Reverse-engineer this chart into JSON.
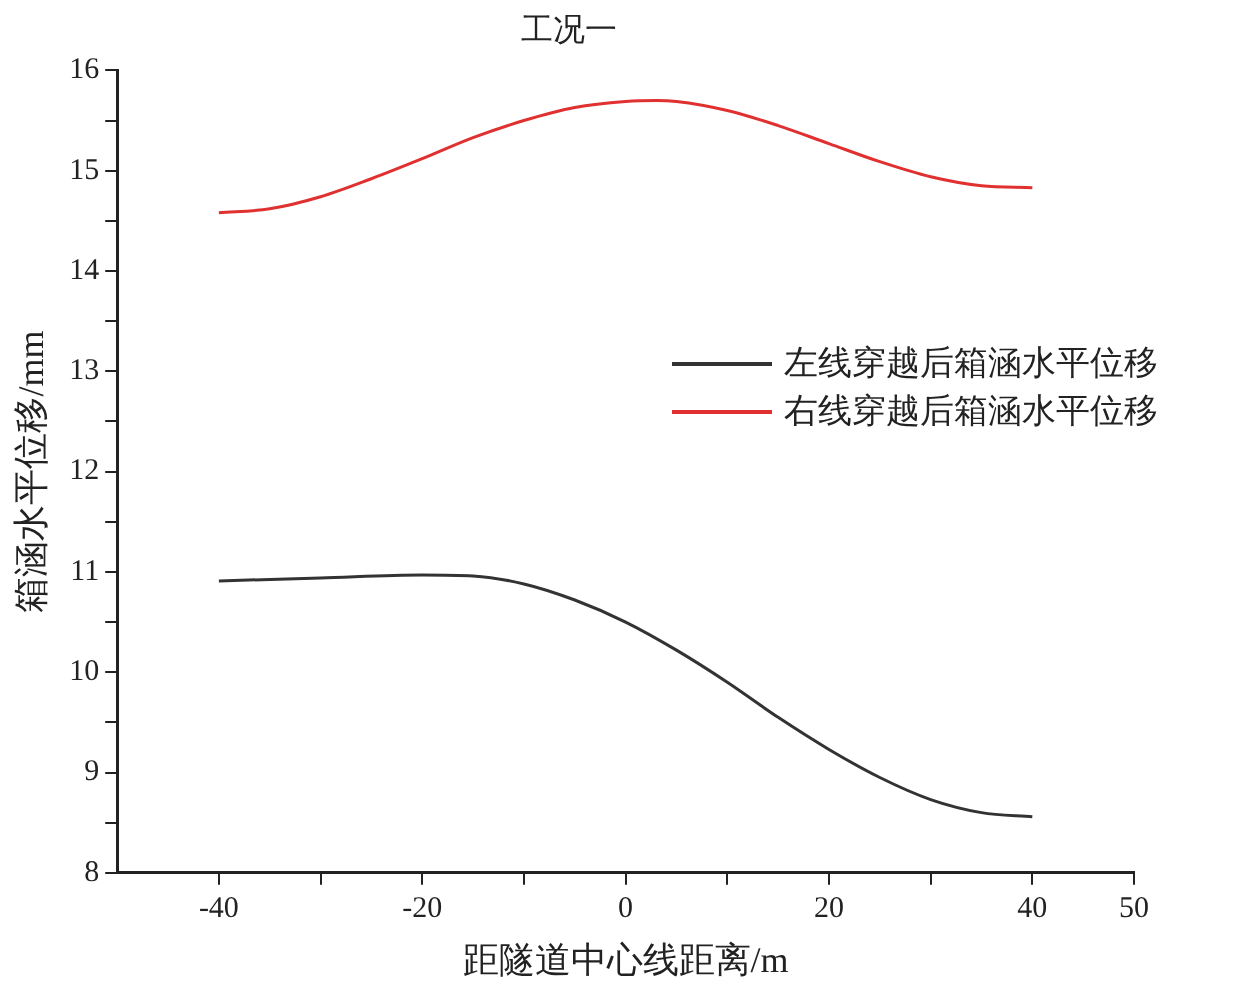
{
  "chart_data": {
    "type": "line",
    "title": "工况一",
    "xlabel": "距隧道中心线距离/m",
    "ylabel": "箱涵水平位移/mm",
    "xlim": [
      -50,
      50
    ],
    "xticks": [
      -40,
      {
        "value": -30,
        "label": null
      },
      -20,
      {
        "value": -10,
        "label": null
      },
      0,
      {
        "value": 10,
        "label": null
      },
      20,
      {
        "value": 30,
        "label": null
      },
      40,
      50
    ],
    "ylim": [
      8,
      16
    ],
    "yticks": [
      8,
      {
        "value": 8.5,
        "label": null
      },
      9,
      {
        "value": 9.5,
        "label": null
      },
      10,
      {
        "value": 10.5,
        "label": null
      },
      11,
      {
        "value": 11.5,
        "label": null
      },
      12,
      {
        "value": 12.5,
        "label": null
      },
      13,
      {
        "value": 13.5,
        "label": null
      },
      14,
      {
        "value": 14.5,
        "label": null
      },
      15,
      {
        "value": 15.5,
        "label": null
      },
      16
    ],
    "grid": false,
    "legend": "right",
    "marker": "none",
    "line_style": "solid",
    "series": [
      {
        "name": "左线穿越后箱涵水平位移",
        "color": "#333333",
        "x": [
          -40,
          -30,
          -20,
          -15,
          -10,
          -5,
          0,
          5,
          10,
          15,
          20,
          25,
          30,
          35,
          40
        ],
        "values": [
          10.91,
          10.94,
          10.97,
          10.96,
          10.88,
          10.72,
          10.5,
          10.22,
          9.9,
          9.55,
          9.23,
          8.95,
          8.73,
          8.6,
          8.56
        ]
      },
      {
        "name": "右线穿越后箱涵水平位移",
        "color": "#e03030",
        "x": [
          -40,
          -35,
          -30,
          -25,
          -20,
          -15,
          -10,
          -5,
          0,
          3,
          5,
          10,
          15,
          20,
          25,
          30,
          35,
          40
        ],
        "values": [
          14.58,
          14.62,
          14.74,
          14.92,
          15.12,
          15.33,
          15.5,
          15.63,
          15.69,
          15.7,
          15.69,
          15.6,
          15.45,
          15.27,
          15.09,
          14.94,
          14.85,
          14.83
        ]
      }
    ]
  }
}
